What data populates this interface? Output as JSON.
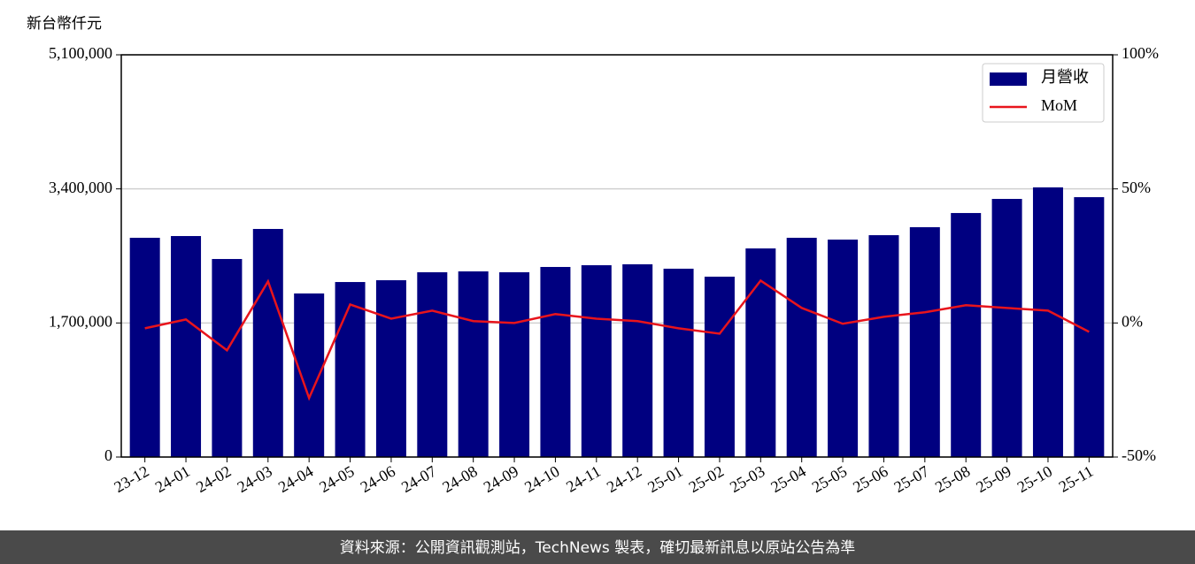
{
  "chart_data": {
    "type": "bar_line",
    "y_label": "新台幣仟元",
    "footer": "資料來源：公開資訊觀測站，TechNews 製表，確切最新訊息以原站公告為準",
    "categories": [
      "23-12",
      "24-01",
      "24-02",
      "24-03",
      "24-04",
      "24-05",
      "24-06",
      "24-07",
      "24-08",
      "24-09",
      "24-10",
      "24-11",
      "24-12",
      "25-01",
      "25-02",
      "25-03",
      "25-04",
      "25-05",
      "25-06",
      "25-07",
      "25-08",
      "25-09",
      "25-10",
      "25-11"
    ],
    "series": [
      {
        "name": "月營收",
        "color": "#000080",
        "kind": "bar",
        "values": [
          2780000,
          2802000,
          2511000,
          2892000,
          2074000,
          2219000,
          2242000,
          2343000,
          2354000,
          2343000,
          2410000,
          2432000,
          2444000,
          2388000,
          2287000,
          2645000,
          2780000,
          2757000,
          2813000,
          2914000,
          3094000,
          3273000,
          3419000,
          3295000
        ]
      },
      {
        "name": "MoM",
        "color": "#e8141c",
        "kind": "line",
        "axis": "y2",
        "values": [
          -2,
          1.3,
          -10.2,
          15.5,
          -28,
          6.9,
          1.6,
          4.6,
          0.7,
          0,
          3.3,
          1.6,
          0.7,
          -2,
          -4,
          15.8,
          5.6,
          -0.3,
          2.3,
          4,
          6.6,
          5.6,
          4.6,
          -3.3
        ]
      }
    ],
    "ylim": [
      0,
      5100000
    ],
    "yticks": [
      0,
      {
        "value": 1700000,
        "label": "1,700,000"
      },
      {
        "value": 3400000,
        "label": "3,400,000"
      },
      {
        "value": 5100000,
        "label": "5,100,000"
      }
    ],
    "y2lim": [
      -50,
      100
    ],
    "y2ticks": [
      {
        "value": -50,
        "label": "-50%"
      },
      {
        "value": 0,
        "label": "0%"
      },
      {
        "value": 50,
        "label": "50%"
      },
      {
        "value": 100,
        "label": "100%"
      }
    ],
    "grid": true,
    "legend": "upper right"
  }
}
